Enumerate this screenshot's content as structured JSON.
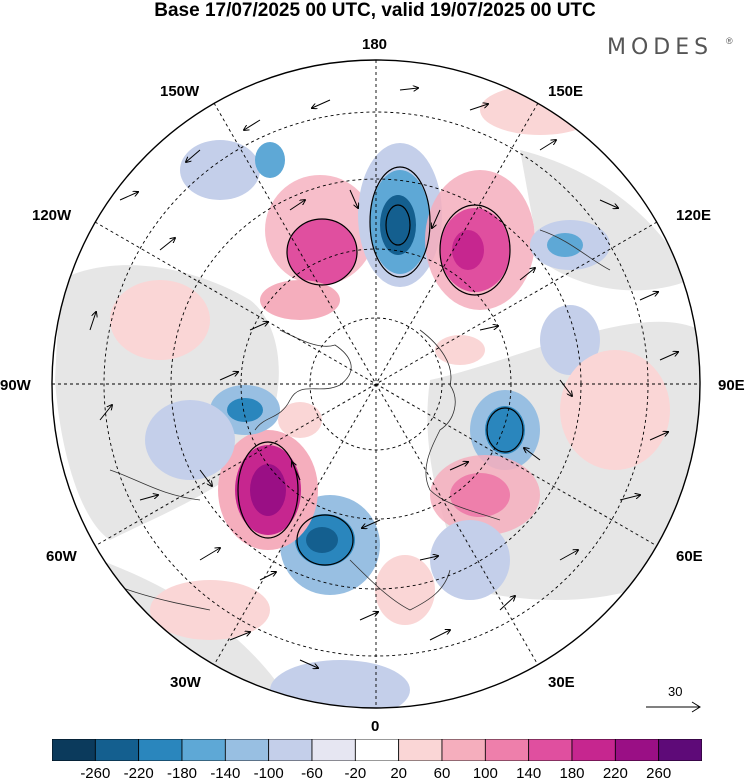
{
  "title": "Base 17/07/2025 00 UTC, valid 19/07/2025 00 UTC",
  "brand": "MODES",
  "longitude_labels": {
    "lon_180": "180",
    "lon_150E": "150E",
    "lon_120E": "120E",
    "lon_90E": "90E",
    "lon_60E": "60E",
    "lon_30E": "30E",
    "lon_0": "0",
    "lon_30W": "30W",
    "lon_60W": "60W",
    "lon_90W": "90W",
    "lon_120W": "120W",
    "lon_150W": "150W"
  },
  "reference_vector": {
    "label": "30"
  },
  "colorbar": {
    "colors": [
      "#0b3a5c",
      "#145f8f",
      "#2a86bd",
      "#5ea8d6",
      "#98bfe2",
      "#c4cfea",
      "#e6e6f2",
      "#ffffff",
      "#fad6d6",
      "#f5aebd",
      "#ee7fab",
      "#e04f9f",
      "#c6268f",
      "#9a0f85",
      "#5e0a78"
    ],
    "ticks": [
      "-260",
      "-220",
      "-180",
      "-140",
      "-100",
      "-60",
      "-20",
      "20",
      "60",
      "100",
      "140",
      "180",
      "220",
      "260"
    ]
  }
}
